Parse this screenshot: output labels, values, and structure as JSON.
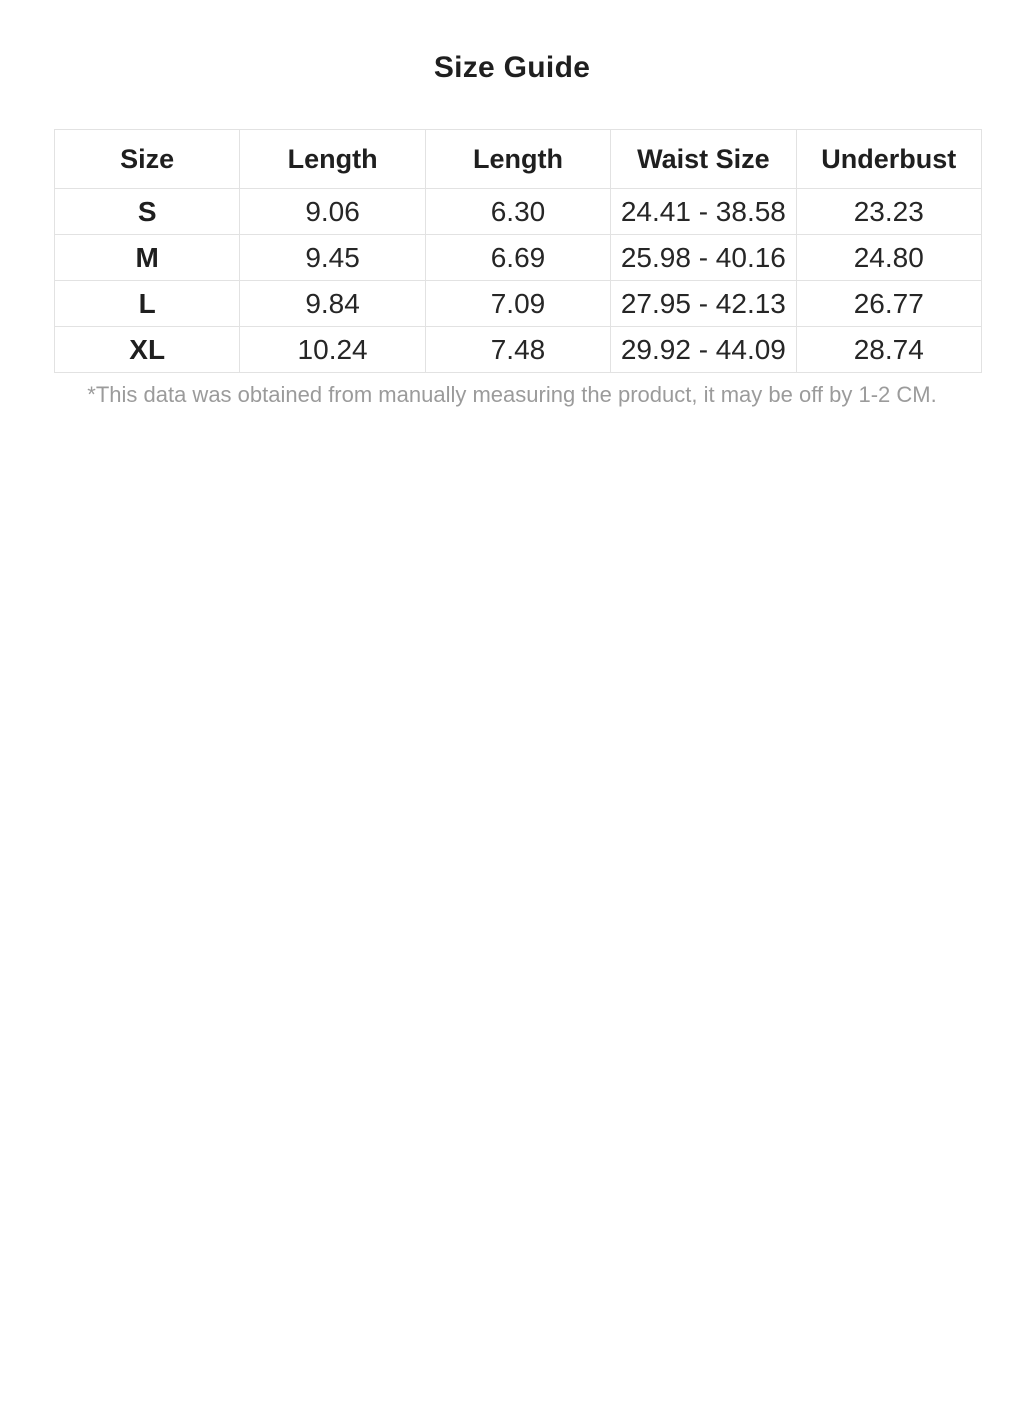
{
  "page": {
    "title": "Size Guide",
    "footnote": "*This data was obtained from manually measuring the product, it may be off by 1-2 CM."
  },
  "size_table": {
    "headers": [
      "Size",
      "Length",
      "Length",
      "Waist Size",
      "Underbust"
    ],
    "rows": [
      [
        "S",
        "9.06",
        "6.30",
        "24.41 - 38.58",
        "23.23"
      ],
      [
        "M",
        "9.45",
        "6.69",
        "25.98 - 40.16",
        "24.80"
      ],
      [
        "L",
        "9.84",
        "7.09",
        "27.95 - 42.13",
        "26.77"
      ],
      [
        "XL",
        "10.24",
        "7.48",
        "29.92 - 44.09",
        "28.74"
      ]
    ]
  },
  "colors": {
    "text": "#262626",
    "heading_text": "#1f1f1f",
    "table_border": "#e2e2e2",
    "footnote_gray": "#9b9b9b",
    "background": "#ffffff"
  }
}
